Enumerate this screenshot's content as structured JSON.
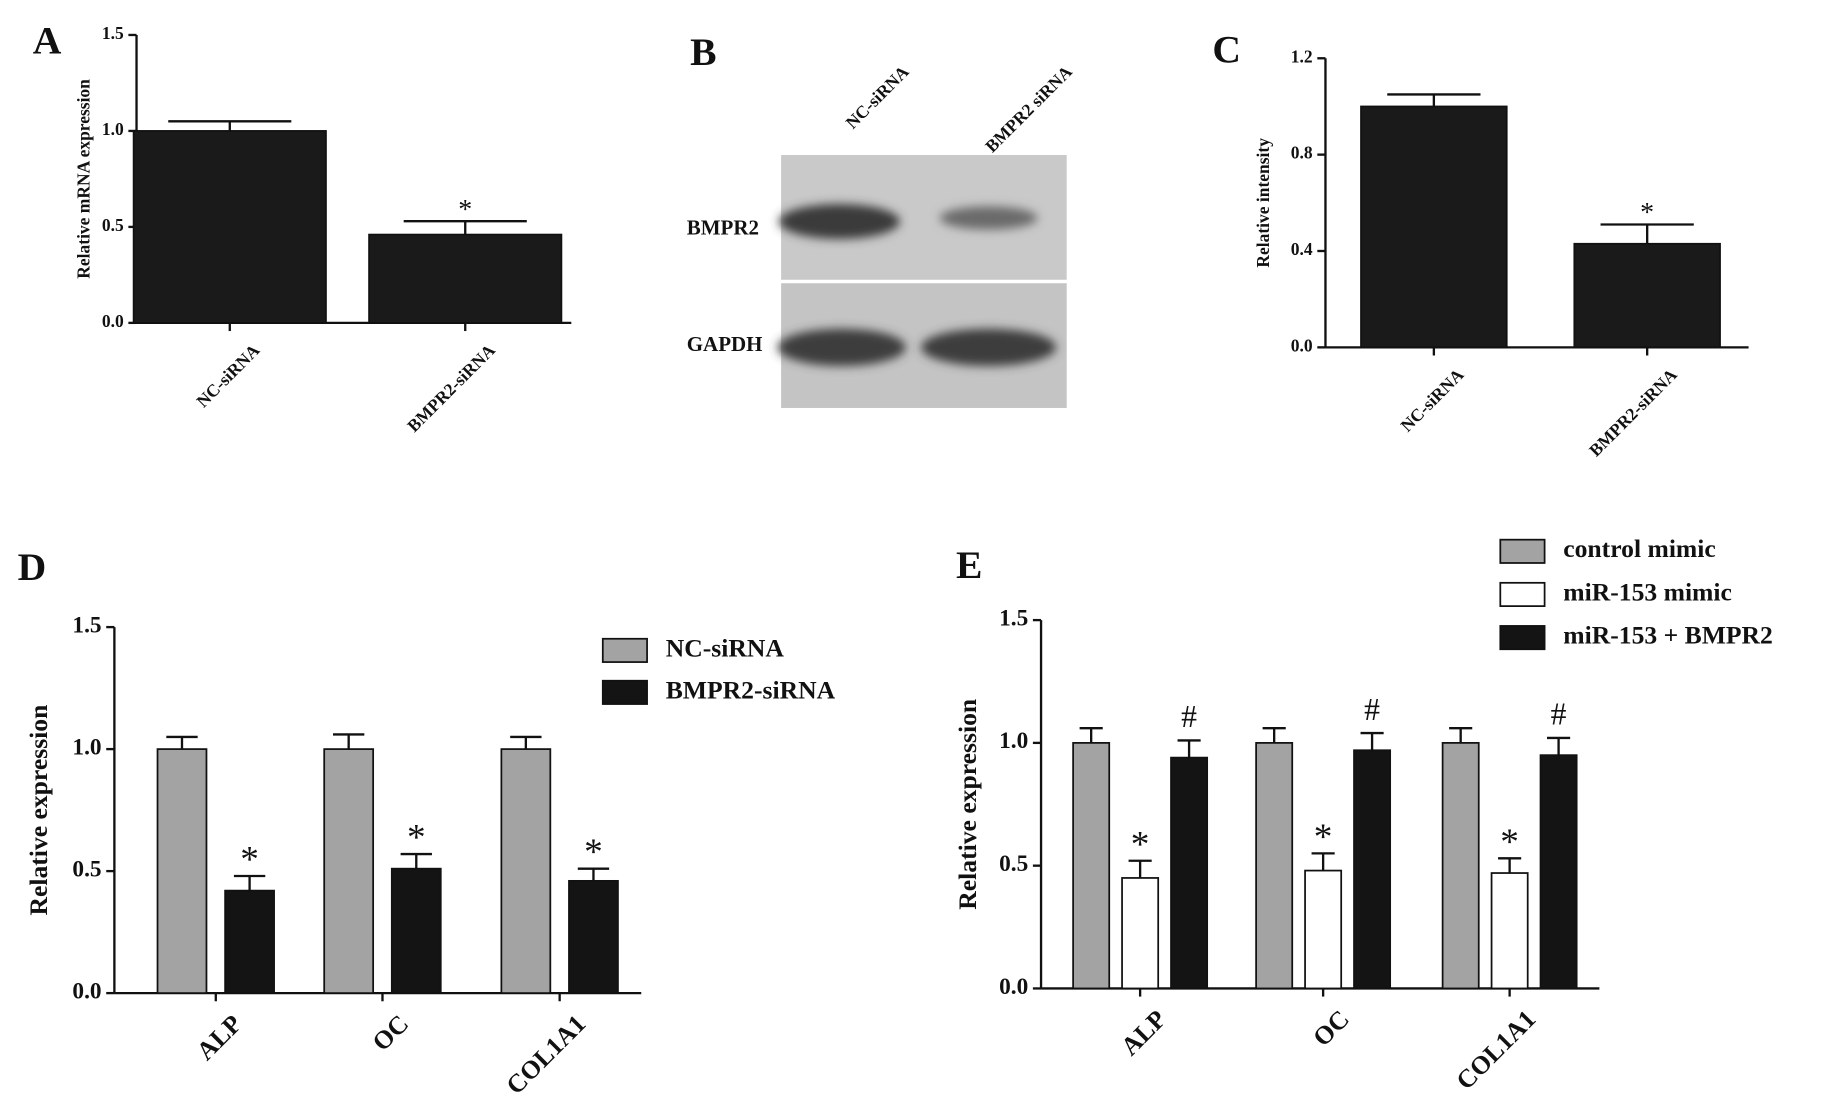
{
  "chart_data": [
    {
      "type": "bar",
      "panel": "A",
      "y_label": "Relative mRNA expression",
      "categories": [
        "NC-siRNA",
        "BMPR2-siRNA"
      ],
      "values": [
        1.0,
        0.46
      ],
      "errors": [
        0.05,
        0.07
      ],
      "annotations": [
        null,
        "*"
      ],
      "color": "#1a1a1a",
      "ylim": [
        0,
        1.5
      ],
      "yticks": [
        {
          "value": 0,
          "label": "0.0"
        },
        0.5,
        {
          "value": 1,
          "label": "1.0"
        },
        1.5
      ]
    },
    {
      "type": "blot",
      "panel": "B",
      "lanes": [
        "NC-siRNA",
        "BMPR2 siRNA"
      ],
      "rows": [
        "BMPR2",
        "GAPDH"
      ]
    },
    {
      "type": "bar",
      "panel": "C",
      "y_label": "Relative  intensity",
      "categories": [
        "NC-siRNA",
        "BMPR2-siRNA"
      ],
      "values": [
        1.0,
        0.43
      ],
      "errors": [
        0.05,
        0.08
      ],
      "annotations": [
        null,
        "*"
      ],
      "color": "#1a1a1a",
      "ylim": [
        0,
        1.2
      ],
      "yticks": [
        {
          "value": 0,
          "label": "0.0"
        },
        0.4,
        0.8,
        1.2
      ]
    },
    {
      "type": "bar",
      "panel": "D",
      "y_label": "Relative expression",
      "legend": "upper right",
      "categories": [
        "ALP",
        "OC",
        "COL1A1"
      ],
      "series": [
        {
          "name": "NC-siRNA",
          "color": "#a3a3a3",
          "values": [
            1.0,
            1.0,
            1.0
          ],
          "errors": [
            0.05,
            0.06,
            0.05
          ],
          "annotations": [
            null,
            null,
            null
          ]
        },
        {
          "name": "BMPR2-siRNA",
          "color": "#141414",
          "values": [
            0.42,
            0.51,
            0.46
          ],
          "errors": [
            0.06,
            0.06,
            0.05
          ],
          "annotations": [
            "*",
            "*",
            "*"
          ]
        }
      ],
      "ylim": [
        0,
        1.5
      ],
      "yticks": [
        {
          "value": 0,
          "label": "0.0"
        },
        0.5,
        {
          "value": 1,
          "label": "1.0"
        },
        1.5
      ]
    },
    {
      "type": "bar",
      "panel": "E",
      "y_label": "Relative expression",
      "legend": "upper right",
      "categories": [
        "ALP",
        "OC",
        "COL1A1"
      ],
      "series": [
        {
          "name": "control mimic",
          "color": "#a3a3a3",
          "values": [
            1.0,
            1.0,
            1.0
          ],
          "errors": [
            0.06,
            0.06,
            0.06
          ],
          "annotations": [
            null,
            null,
            null
          ]
        },
        {
          "name": "miR-153 mimic",
          "color": "#ffffff",
          "values": [
            0.45,
            0.48,
            0.47
          ],
          "errors": [
            0.07,
            0.07,
            0.06
          ],
          "annotations": [
            "*",
            "*",
            "*"
          ]
        },
        {
          "name": "miR-153 + BMPR2",
          "color": "#141414",
          "values": [
            0.94,
            0.97,
            0.95
          ],
          "errors": [
            0.07,
            0.07,
            0.07
          ],
          "annotations": [
            "#",
            "#",
            "#"
          ]
        }
      ],
      "ylim": [
        0,
        1.5
      ],
      "yticks": [
        {
          "value": 0,
          "label": "0.0"
        },
        0.5,
        {
          "value": 1,
          "label": "1.0"
        },
        1.5
      ]
    }
  ]
}
